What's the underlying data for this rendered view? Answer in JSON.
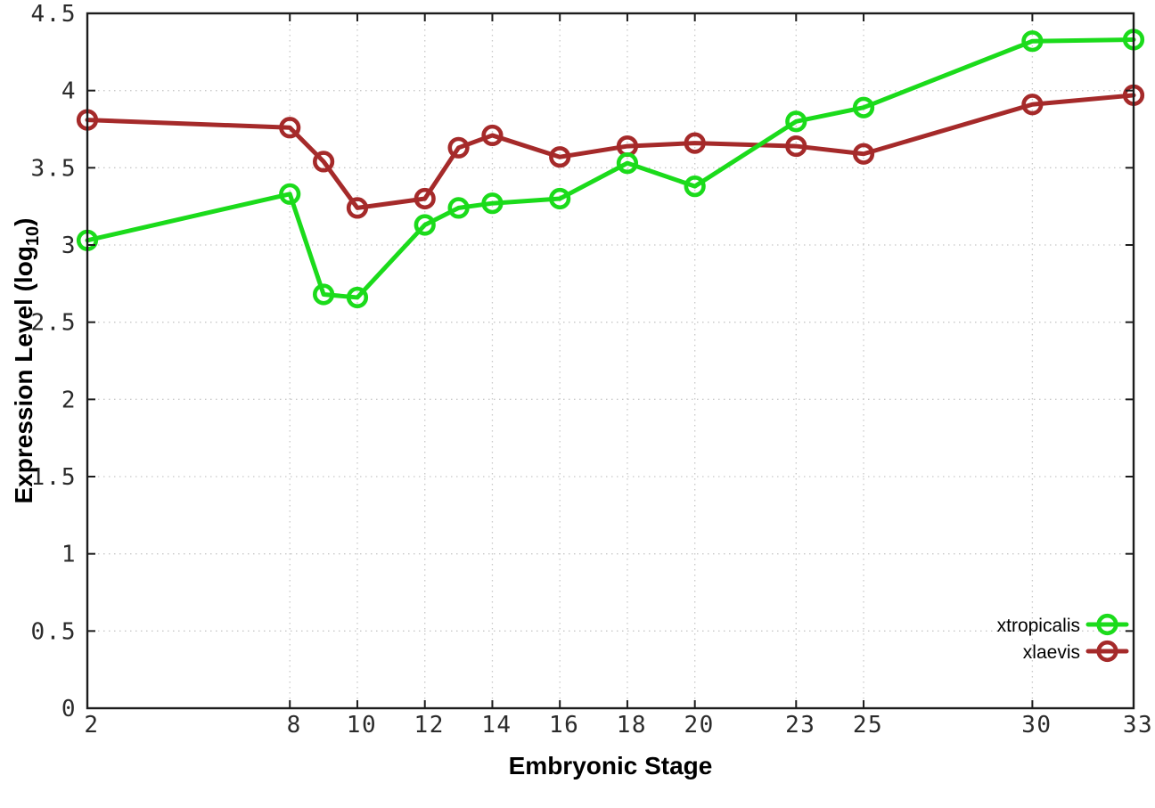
{
  "chart_data": {
    "type": "line",
    "title": "",
    "xlabel": "Embryonic Stage",
    "ylabel": "Expression Level (log10)",
    "ylabel_parts": {
      "pre": "Expression Level (log",
      "sub": "10",
      "post": ")"
    },
    "x": [
      2,
      8,
      9,
      10,
      12,
      13,
      14,
      16,
      18,
      20,
      23,
      25,
      30,
      33
    ],
    "series": [
      {
        "name": "xtropicalis",
        "color": "#1bdb1b",
        "values": [
          3.03,
          3.33,
          2.68,
          2.66,
          3.13,
          3.24,
          3.27,
          3.3,
          3.53,
          3.38,
          3.8,
          3.89,
          4.32,
          4.33
        ]
      },
      {
        "name": "xlaevis",
        "color": "#a52a2a",
        "values": [
          3.81,
          3.76,
          3.54,
          3.24,
          3.3,
          3.63,
          3.71,
          3.57,
          3.64,
          3.66,
          3.64,
          3.59,
          3.91,
          3.97
        ]
      }
    ],
    "xticks": [
      2,
      8,
      10,
      12,
      14,
      16,
      18,
      20,
      23,
      25,
      30,
      33
    ],
    "xtick_labels": [
      "2",
      "8",
      "10",
      "12",
      "14",
      "16",
      "18",
      "20",
      "23",
      "25",
      "30",
      "33"
    ],
    "yticks": [
      0,
      0.5,
      1,
      1.5,
      2,
      2.5,
      3,
      3.5,
      4,
      4.5
    ],
    "ytick_labels": [
      "0",
      "0.5",
      "1",
      "1.5",
      "2",
      "2.5",
      "3",
      "3.5",
      "4",
      "4.5"
    ],
    "xlim": [
      2,
      33
    ],
    "ylim": [
      0,
      4.5
    ],
    "grid": true,
    "legend_position": "inside-bottom-right",
    "marker": "open-circle"
  },
  "style": {
    "background": "#ffffff",
    "grid_color": "#c8c8c8",
    "axis_color": "#1c1c1c",
    "tick_label_color": "#2b2b2b",
    "line_width": 5,
    "marker_radius": 9.8,
    "marker_stroke": 4.6
  }
}
